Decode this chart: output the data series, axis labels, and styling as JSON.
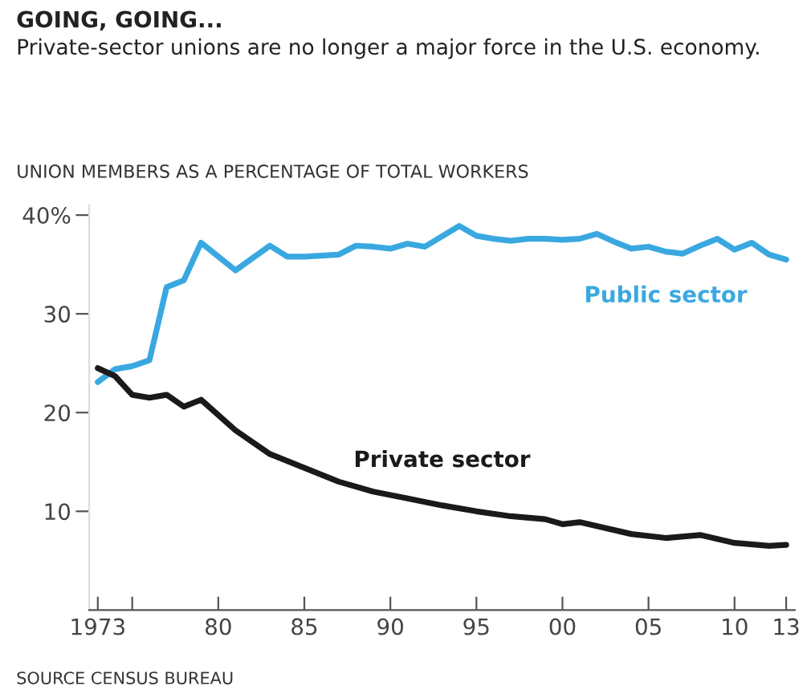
{
  "chart_data": {
    "type": "line",
    "title": "GOING, GOING...",
    "subtitle": "Private-sector unions are no longer a major force in the U.S. economy.",
    "ylabel": "UNION MEMBERS AS A PERCENTAGE OF TOTAL WORKERS",
    "annotations": [
      "SOURCE CENSUS BUREAU"
    ],
    "series": [
      {
        "name": "Public sector",
        "color": "#3aa8e0",
        "x": [
          1973,
          1974,
          1975,
          1976,
          1977,
          1978,
          1979,
          1981,
          1983,
          1984,
          1985,
          1986,
          1987,
          1988,
          1989,
          1990,
          1991,
          1992,
          1994,
          1995,
          1996,
          1997,
          1998,
          1999,
          2000,
          2001,
          2002,
          2003,
          2004,
          2005,
          2006,
          2007,
          2008,
          2009,
          2010,
          2011,
          2012,
          2013
        ],
        "values": [
          23.1,
          24.4,
          24.7,
          25.3,
          32.7,
          33.4,
          37.2,
          34.4,
          36.9,
          35.8,
          35.8,
          35.9,
          36.0,
          36.9,
          36.8,
          36.6,
          37.1,
          36.8,
          38.9,
          37.9,
          37.6,
          37.4,
          37.6,
          37.6,
          37.5,
          37.6,
          38.1,
          37.3,
          36.6,
          36.8,
          36.3,
          36.1,
          36.9,
          37.6,
          36.5,
          37.2,
          36.0,
          35.5
        ]
      },
      {
        "name": "Private sector",
        "color": "#1a1a1a",
        "x": [
          1973,
          1974,
          1975,
          1976,
          1977,
          1978,
          1979,
          1981,
          1983,
          1985,
          1987,
          1989,
          1991,
          1993,
          1995,
          1997,
          1999,
          2000,
          2001,
          2004,
          2006,
          2008,
          2010,
          2012,
          2013
        ],
        "values": [
          24.5,
          23.7,
          21.8,
          21.5,
          21.8,
          20.6,
          21.3,
          18.2,
          15.8,
          14.4,
          13.0,
          12.0,
          11.3,
          10.6,
          10.0,
          9.5,
          9.2,
          8.7,
          8.9,
          7.7,
          7.3,
          7.6,
          6.8,
          6.5,
          6.6
        ]
      }
    ],
    "xlim": [
      1972.5,
      2013.5
    ],
    "xticks": [
      1973,
      {
        "value": 1975,
        "label": null
      },
      {
        "value": 1980,
        "label": "80"
      },
      {
        "value": 1985,
        "label": "85"
      },
      {
        "value": 1990,
        "label": "90"
      },
      {
        "value": 1995,
        "label": "95"
      },
      {
        "value": 2000,
        "label": "00"
      },
      {
        "value": 2005,
        "label": "05"
      },
      {
        "value": 2010,
        "label": "10"
      },
      {
        "value": 2013,
        "label": "13"
      }
    ],
    "ylim": [
      0,
      41
    ],
    "yticks": [
      {
        "value": 10,
        "label": "10"
      },
      {
        "value": 20,
        "label": "20"
      },
      {
        "value": 30,
        "label": "30"
      },
      {
        "value": 40,
        "label": "40%"
      }
    ],
    "grid": false,
    "legend": false,
    "marker": "none",
    "line_style": "solid"
  }
}
